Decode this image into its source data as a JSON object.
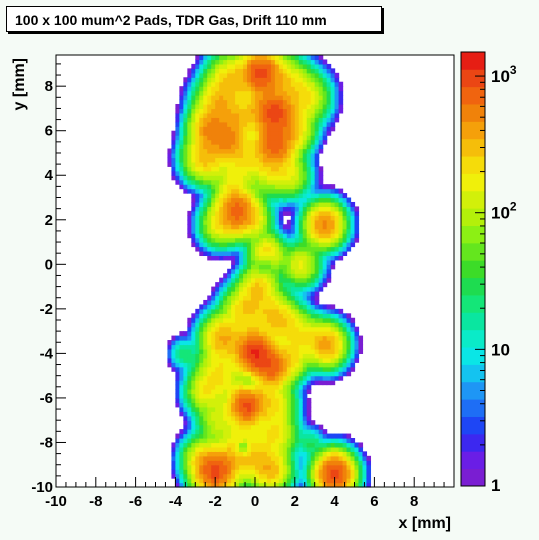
{
  "chart_data": {
    "type": "heatmap",
    "title": "100 x 100 mum^2 Pads, TDR Gas, Drift 110 mm",
    "xlabel": "x [mm]",
    "ylabel": "y [mm]",
    "xlim": [
      -10,
      10
    ],
    "ylim": [
      -10,
      9.4
    ],
    "x_ticks": [
      "-10",
      "-8",
      "-6",
      "-4",
      "-2",
      "0",
      "2",
      "4",
      "6",
      "8"
    ],
    "y_ticks": [
      "-10",
      "-8",
      "-6",
      "-4",
      "-2",
      "0",
      "2",
      "4",
      "6",
      "8"
    ],
    "z_scale": "log",
    "zlim": [
      1,
      1500
    ],
    "z_ticks": [
      {
        "label": "1",
        "value": 1,
        "sup": ""
      },
      {
        "label": "10",
        "value": 10,
        "sup": ""
      },
      {
        "label": "10",
        "value": 100,
        "sup": "2"
      },
      {
        "label": "10",
        "value": 1000,
        "sup": "3"
      }
    ],
    "palette": [
      "#7a1ed2",
      "#6a1ee6",
      "#3c28f0",
      "#1e46f5",
      "#1e6ef5",
      "#1e96f5",
      "#14c3f0",
      "#0ae6e6",
      "#0aebc8",
      "#0ae6a0",
      "#14e678",
      "#1edc50",
      "#3cdc28",
      "#64e61e",
      "#8cf014",
      "#b4f00a",
      "#d2f00a",
      "#f0f00a",
      "#f5dc0a",
      "#f5be0a",
      "#f5a00a",
      "#f0820a",
      "#f0640f",
      "#eb4614",
      "#e61e14"
    ],
    "blobs": [
      {
        "x": 0.3,
        "y": 8.6,
        "a": 900,
        "s": 0.55
      },
      {
        "x": -1.2,
        "y": 8.3,
        "a": 250,
        "s": 0.6
      },
      {
        "x": 1.5,
        "y": 8.2,
        "a": 200,
        "s": 0.6
      },
      {
        "x": -1.8,
        "y": 7.2,
        "a": 300,
        "s": 0.6
      },
      {
        "x": 2.5,
        "y": 7.5,
        "a": 200,
        "s": 0.6
      },
      {
        "x": 1.0,
        "y": 6.8,
        "a": 900,
        "s": 0.55
      },
      {
        "x": -2.3,
        "y": 6.1,
        "a": 450,
        "s": 0.5
      },
      {
        "x": -0.9,
        "y": 6.5,
        "a": 250,
        "s": 0.5
      },
      {
        "x": 0.2,
        "y": 7.0,
        "a": 200,
        "s": 0.5
      },
      {
        "x": -1.4,
        "y": 5.6,
        "a": 450,
        "s": 0.5
      },
      {
        "x": 1.0,
        "y": 5.4,
        "a": 700,
        "s": 0.55
      },
      {
        "x": 2.0,
        "y": 6.0,
        "a": 200,
        "s": 0.5
      },
      {
        "x": -2.5,
        "y": 4.8,
        "a": 300,
        "s": 0.55
      },
      {
        "x": -0.6,
        "y": 4.8,
        "a": 200,
        "s": 0.6
      },
      {
        "x": 0.8,
        "y": 4.3,
        "a": 150,
        "s": 0.6
      },
      {
        "x": 1.8,
        "y": 4.0,
        "a": 120,
        "s": 0.5
      },
      {
        "x": -1.2,
        "y": 3.6,
        "a": 120,
        "s": 0.5
      },
      {
        "x": -0.9,
        "y": 2.4,
        "a": 700,
        "s": 0.55
      },
      {
        "x": -1.8,
        "y": 1.8,
        "a": 150,
        "s": 0.5
      },
      {
        "x": 0.0,
        "y": 2.0,
        "a": 120,
        "s": 0.45
      },
      {
        "x": 3.5,
        "y": 1.8,
        "a": 500,
        "s": 0.5
      },
      {
        "x": 0.6,
        "y": 0.5,
        "a": 250,
        "s": 0.45
      },
      {
        "x": 2.3,
        "y": 0.0,
        "a": 150,
        "s": 0.5
      },
      {
        "x": 0.2,
        "y": -1.0,
        "a": 250,
        "s": 0.5
      },
      {
        "x": -0.5,
        "y": -2.0,
        "a": 250,
        "s": 0.55
      },
      {
        "x": 0.8,
        "y": -2.2,
        "a": 200,
        "s": 0.55
      },
      {
        "x": -1.6,
        "y": -3.3,
        "a": 350,
        "s": 0.55
      },
      {
        "x": -0.2,
        "y": -3.6,
        "a": 250,
        "s": 0.55
      },
      {
        "x": 1.5,
        "y": -2.7,
        "a": 200,
        "s": 0.55
      },
      {
        "x": 2.5,
        "y": -3.2,
        "a": 150,
        "s": 0.5
      },
      {
        "x": 3.6,
        "y": -3.6,
        "a": 400,
        "s": 0.5
      },
      {
        "x": -3.6,
        "y": -4.0,
        "a": 25,
        "s": 0.35
      },
      {
        "x": 0.0,
        "y": -4.0,
        "a": 900,
        "s": 0.5
      },
      {
        "x": 0.8,
        "y": -4.6,
        "a": 700,
        "s": 0.5
      },
      {
        "x": 1.8,
        "y": -4.2,
        "a": 200,
        "s": 0.5
      },
      {
        "x": -1.8,
        "y": -4.9,
        "a": 200,
        "s": 0.6
      },
      {
        "x": -2.5,
        "y": -5.7,
        "a": 150,
        "s": 0.5
      },
      {
        "x": -0.4,
        "y": -6.3,
        "a": 900,
        "s": 0.5
      },
      {
        "x": 0.9,
        "y": -6.2,
        "a": 200,
        "s": 0.55
      },
      {
        "x": -1.8,
        "y": -7.0,
        "a": 120,
        "s": 0.55
      },
      {
        "x": 1.0,
        "y": -7.6,
        "a": 200,
        "s": 0.55
      },
      {
        "x": -0.6,
        "y": -7.8,
        "a": 120,
        "s": 0.5
      },
      {
        "x": 2.8,
        "y": -8.0,
        "a": 25,
        "s": 0.35
      },
      {
        "x": 0.0,
        "y": -8.7,
        "a": 200,
        "s": 0.55
      },
      {
        "x": -2.0,
        "y": -9.3,
        "a": 900,
        "s": 0.55
      },
      {
        "x": -1.0,
        "y": -8.6,
        "a": 200,
        "s": 0.55
      },
      {
        "x": 0.8,
        "y": -9.2,
        "a": 300,
        "s": 0.5
      },
      {
        "x": -2.7,
        "y": -8.7,
        "a": 150,
        "s": 0.5
      },
      {
        "x": 4.0,
        "y": -9.4,
        "a": 1000,
        "s": 0.5
      },
      {
        "x": 1.8,
        "y": -9.5,
        "a": 8,
        "s": 0.3
      }
    ],
    "holes": [
      {
        "x": -0.6,
        "y": -8.2,
        "d": 0.85,
        "s": 0.25
      },
      {
        "x": 0.5,
        "y": 0.0,
        "d": 0.7,
        "s": 0.35
      },
      {
        "x": -0.3,
        "y": -5.3,
        "d": 0.5,
        "s": 0.3
      }
    ]
  }
}
